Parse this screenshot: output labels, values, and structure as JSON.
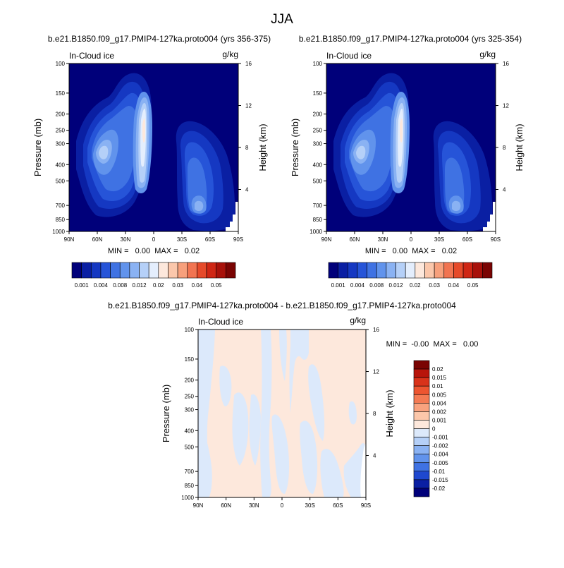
{
  "page_title": "JJA",
  "chart_data": [
    {
      "type": "heatmap",
      "title": "b.e21.B1850.f09_g17.PMIP4-127ka.proto004 (yrs 356-375)",
      "left_label": "In-Cloud ice",
      "units": "g/kg",
      "xlabel": "",
      "ylabel": "Pressure (mb)",
      "right_axis_label": "Height (km)",
      "x_ticks": [
        "90N",
        "60N",
        "30N",
        "0",
        "30S",
        "60S",
        "90S"
      ],
      "y_ticks": [
        "100",
        "150",
        "200",
        "250",
        "300",
        "400",
        "500",
        "700",
        "850",
        "1000"
      ],
      "right_ticks": [
        "16",
        "12",
        "8",
        "4"
      ],
      "ylim": [
        1000,
        100
      ],
      "y_scale": "log",
      "stats": "MIN =   0.00  MAX =   0.02",
      "features": [
        {
          "lat": 50,
          "p": 380,
          "value": 0.012
        },
        {
          "lat": 10,
          "p": 250,
          "value": 0.02
        },
        {
          "lat": 5,
          "p": 480,
          "value": 0.012
        },
        {
          "lat": -55,
          "p": 760,
          "value": 0.012
        }
      ],
      "colorbar": {
        "labels": [
          "0.001",
          "0.004",
          "0.008",
          "0.012",
          "0.02",
          "0.03",
          "0.04",
          "0.05"
        ],
        "colors": [
          "#00007a",
          "#0a1fa3",
          "#1538c2",
          "#2654d8",
          "#3f72e3",
          "#6193ec",
          "#8ab2f3",
          "#b5d0f8",
          "#e4eefd",
          "#fde8dc",
          "#fbc7ab",
          "#f7a07c",
          "#f17451",
          "#e64a2a",
          "#cf2614",
          "#a8110a",
          "#7a0403"
        ]
      }
    },
    {
      "type": "heatmap",
      "title": "b.e21.B1850.f09_g17.PMIP4-127ka.proto004 (yrs 325-354)",
      "left_label": "In-Cloud ice",
      "units": "g/kg",
      "xlabel": "",
      "ylabel": "Pressure (mb)",
      "right_axis_label": "Height (km)",
      "x_ticks": [
        "90N",
        "60N",
        "30N",
        "0",
        "30S",
        "60S",
        "90S"
      ],
      "y_ticks": [
        "100",
        "150",
        "200",
        "250",
        "300",
        "400",
        "500",
        "700",
        "850",
        "1000"
      ],
      "right_ticks": [
        "16",
        "12",
        "8",
        "4"
      ],
      "ylim": [
        1000,
        100
      ],
      "y_scale": "log",
      "stats": "MIN =   0.00  MAX =   0.02",
      "features": [
        {
          "lat": 50,
          "p": 380,
          "value": 0.012
        },
        {
          "lat": 10,
          "p": 250,
          "value": 0.02
        },
        {
          "lat": 5,
          "p": 480,
          "value": 0.012
        },
        {
          "lat": -55,
          "p": 760,
          "value": 0.012
        }
      ],
      "colorbar": {
        "labels": [
          "0.001",
          "0.004",
          "0.008",
          "0.012",
          "0.02",
          "0.03",
          "0.04",
          "0.05"
        ],
        "colors": [
          "#00007a",
          "#0a1fa3",
          "#1538c2",
          "#2654d8",
          "#3f72e3",
          "#6193ec",
          "#8ab2f3",
          "#b5d0f8",
          "#e4eefd",
          "#fde8dc",
          "#fbc7ab",
          "#f7a07c",
          "#f17451",
          "#e64a2a",
          "#cf2614",
          "#a8110a",
          "#7a0403"
        ]
      }
    },
    {
      "type": "heatmap",
      "title": "b.e21.B1850.f09_g17.PMIP4-127ka.proto004 - b.e21.B1850.f09_g17.PMIP4-127ka.proto004",
      "left_label": "In-Cloud ice",
      "units": "g/kg",
      "xlabel": "",
      "ylabel": "Pressure (mb)",
      "right_axis_label": "Height (km)",
      "x_ticks": [
        "90N",
        "60N",
        "30N",
        "0",
        "30S",
        "60S",
        "90S"
      ],
      "y_ticks": [
        "100",
        "150",
        "200",
        "250",
        "300",
        "400",
        "500",
        "700",
        "850",
        "1000"
      ],
      "right_ticks": [
        "16",
        "12",
        "8",
        "4"
      ],
      "ylim": [
        1000,
        100
      ],
      "y_scale": "log",
      "stats": "MIN =  -0.00  MAX =   0.00",
      "field_description_values": {
        "positive": 0.001,
        "negative": -0.001
      },
      "colorbar": {
        "labels": [
          "0.02",
          "0.015",
          "0.01",
          "0.005",
          "0.004",
          "0.002",
          "0.001",
          "0",
          "-0.001",
          "-0.002",
          "-0.004",
          "-0.005",
          "-0.01",
          "-0.015",
          "-0.02"
        ],
        "colors": [
          "#7a0403",
          "#b8150b",
          "#d9331a",
          "#ed5530",
          "#f47a53",
          "#f9a27e",
          "#fcc7aa",
          "#fde8dc",
          "#dce9fb",
          "#b5d0f8",
          "#8ab2f3",
          "#6193ec",
          "#3f72e3",
          "#1f48cf",
          "#0a1fa3",
          "#00007a"
        ]
      }
    }
  ]
}
